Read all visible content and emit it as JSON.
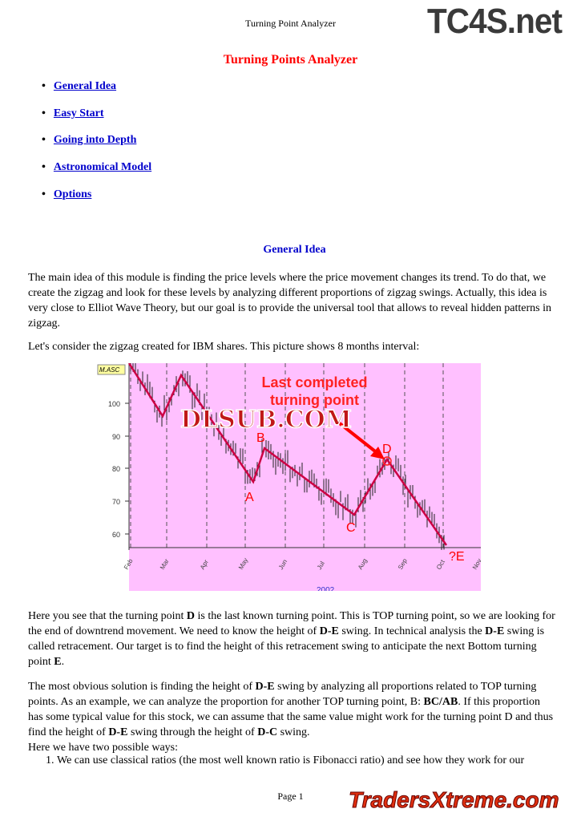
{
  "header": {
    "running_title": "Turning Point Analyzer",
    "logo_top": "TC4S.net"
  },
  "title": "Turning Points Analyzer",
  "toc": [
    "General Idea",
    "Easy Start",
    "Going into Depth",
    "Astronomical Model",
    "Options"
  ],
  "section_heading": "General Idea",
  "paragraphs": {
    "p1": "The main idea of this module is finding the price levels where the price movement changes its trend. To do that, we create the zigzag and look for these levels by analyzing different proportions of zigzag swings. Actually, this idea is very close to Elliot Wave Theory, but our goal is to provide the universal tool that allows to reveal hidden patterns in zigzag.",
    "p2": "Let's consider the zigzag created for IBM shares. This picture shows 8 months interval:",
    "p3": [
      "Here you see that the turning point ",
      "D",
      " is the last known turning point. This is TOP turning point, so we are looking for the end of downtrend movement. We need to know the height of ",
      "D-E",
      " swing. In technical analysis the ",
      "D-E",
      " swing is called retracement. Our target is to find the height of this retracement swing to anticipate the next Bottom turning point ",
      "E",
      "."
    ],
    "p4": [
      "The most obvious solution is finding the height of ",
      "D-E",
      " swing by analyzing all proportions related to TOP turning points. As an example, we can analyze the proportion for another TOP turning point, B: ",
      "BC/AB",
      ". If this proportion has some typical value for this stock, we can assume that the same value might work for the turning point D and thus find the height of ",
      "D-E",
      " swing through the height of ",
      "D-C",
      " swing."
    ],
    "p5": "Here we have two possible ways:",
    "li1": "We can use classical ratios (the most well known ratio is Fibonacci ratio) and see how they work for our"
  },
  "chart": {
    "tag": "M.ASC",
    "y_ticks": [
      "100",
      "90",
      "80",
      "70",
      "60"
    ],
    "months": [
      "Feb",
      "Mar",
      "Apr",
      "May",
      "Jun",
      "Jul",
      "Aug",
      "Sep",
      "Oct",
      "Nov"
    ],
    "year": "2002",
    "annotation": "Last completed turning point",
    "point_labels": [
      "A",
      "B",
      "C",
      "D",
      "?E"
    ],
    "watermark": "DLSUB.COM",
    "bg_color": "#ffc0ff",
    "zigzag_color": "#cc0044"
  },
  "footer": {
    "page": "Page 1",
    "logo_bottom": "TradersXtreme.com"
  }
}
